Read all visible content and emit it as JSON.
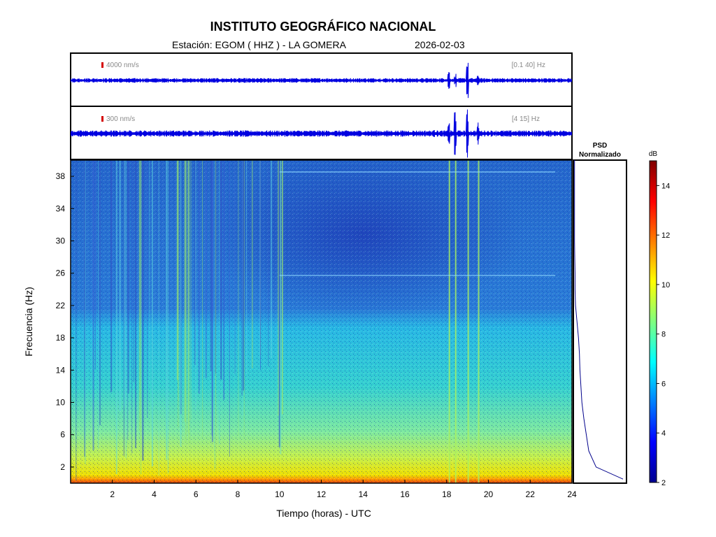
{
  "header": {
    "title": "INSTITUTO GEOGRÁFICO NACIONAL",
    "station": "Estación:  EGOM ( HHZ ) - LA GOMERA",
    "date": "2026-02-03"
  },
  "traces": [
    {
      "scale_label": "4000 nm/s",
      "band_label": "[0.1 40] Hz",
      "bar_color": "#d40000",
      "trace_color": "#0000e0"
    },
    {
      "scale_label": "300 nm/s",
      "band_label": "[4 15] Hz",
      "bar_color": "#d40000",
      "trace_color": "#0000e0"
    }
  ],
  "psd": {
    "title_line1": "PSD",
    "title_line2": "Normalizado",
    "line_color": "#00008b"
  },
  "colorbar": {
    "unit": "dB",
    "min": 2,
    "max": 15,
    "ticks": [
      2,
      4,
      6,
      8,
      10,
      12,
      14
    ]
  },
  "chart_data": {
    "type": "heatmap",
    "xlabel": "Tiempo (horas) - UTC",
    "ylabel": "Frecuencia  (Hz)",
    "xlim": [
      0,
      24
    ],
    "ylim": [
      0,
      40
    ],
    "xticks": [
      2,
      4,
      6,
      8,
      10,
      12,
      14,
      16,
      18,
      20,
      22,
      24
    ],
    "yticks": [
      2,
      6,
      10,
      14,
      18,
      22,
      26,
      30,
      34,
      38
    ],
    "colormap": "jet",
    "description_bands": [
      {
        "f_min": 0,
        "f_max": 1,
        "db": 11.5
      },
      {
        "f_min": 1,
        "f_max": 6,
        "db": 8.0
      },
      {
        "f_min": 6,
        "f_max": 20,
        "db": 6.5
      },
      {
        "f_min": 20,
        "f_max": 40,
        "db": 5.0
      }
    ],
    "events_hours": [
      18.1,
      18.4,
      19.0,
      19.5
    ],
    "psd_profile": {
      "freq": [
        0.5,
        2,
        4,
        6,
        8,
        10,
        12,
        14,
        16,
        18,
        20,
        22,
        24,
        26,
        28,
        30,
        34,
        38,
        40
      ],
      "value": [
        1.0,
        0.45,
        0.3,
        0.25,
        0.2,
        0.16,
        0.14,
        0.12,
        0.11,
        0.09,
        0.06,
        0.03,
        0.02,
        0.02,
        0.015,
        0.01,
        0.01,
        0.01,
        0.01
      ]
    }
  }
}
